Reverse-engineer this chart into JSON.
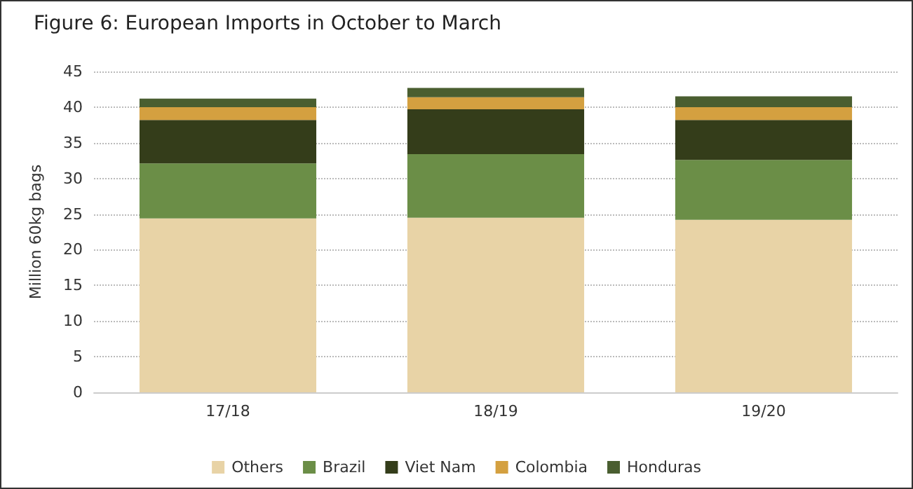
{
  "chart_data": {
    "type": "bar",
    "title": "Figure 6: European Imports in October to March",
    "ylabel": "Million 60kg bags",
    "categories": [
      "17/18",
      "18/19",
      "19/20"
    ],
    "stacked": true,
    "series": [
      {
        "name": "Others",
        "color": "#e8d3a6",
        "values": [
          24.4,
          24.5,
          24.2
        ]
      },
      {
        "name": "Brazil",
        "color": "#6b8e47",
        "values": [
          7.7,
          8.9,
          8.4
        ]
      },
      {
        "name": "Viet Nam",
        "color": "#343d1a",
        "values": [
          6.1,
          6.3,
          5.6
        ]
      },
      {
        "name": "Colombia",
        "color": "#d4a040",
        "values": [
          1.8,
          1.7,
          1.8
        ]
      },
      {
        "name": "Honduras",
        "color": "#4a5e30",
        "values": [
          1.2,
          1.3,
          1.5
        ]
      }
    ],
    "ylim": [
      0,
      45
    ],
    "yticks": [
      0,
      5,
      10,
      15,
      20,
      25,
      30,
      35,
      40,
      45
    ],
    "grid": "y",
    "legend": "bottom"
  }
}
